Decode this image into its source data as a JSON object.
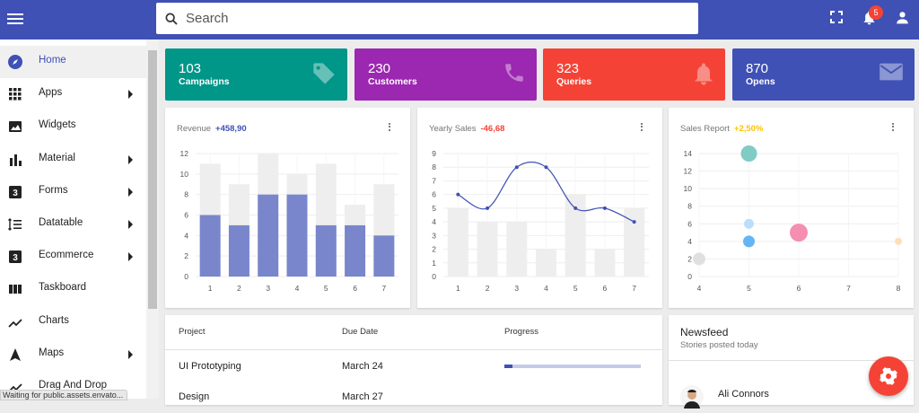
{
  "topbar": {
    "search_placeholder": "Search",
    "notification_count": "5"
  },
  "sidebar": {
    "items": [
      {
        "label": "Home",
        "icon": "compass-icon",
        "chevron": false,
        "active": true
      },
      {
        "label": "Apps",
        "icon": "apps-grid-icon",
        "chevron": true
      },
      {
        "label": "Widgets",
        "icon": "image-icon",
        "chevron": false
      },
      {
        "label": "Material",
        "icon": "bar-chart-icon",
        "chevron": true
      },
      {
        "label": "Forms",
        "icon": "box-3-icon",
        "chevron": true
      },
      {
        "label": "Datatable",
        "icon": "list-numbered-icon",
        "chevron": true
      },
      {
        "label": "Ecommerce",
        "icon": "box-3-icon",
        "chevron": true
      },
      {
        "label": "Taskboard",
        "icon": "columns-icon",
        "chevron": false
      },
      {
        "label": "Charts",
        "icon": "trending-icon",
        "chevron": false
      },
      {
        "label": "Maps",
        "icon": "navigation-icon",
        "chevron": true
      },
      {
        "label": "Drag And Drop",
        "icon": "trending-icon",
        "chevron": false
      }
    ]
  },
  "status_text": "Waiting for public.assets.envato...",
  "tiles": [
    {
      "value": "103",
      "label": "Campaigns",
      "color": "#009688",
      "icon": "tag-icon"
    },
    {
      "value": "230",
      "label": "Customers",
      "color": "#9c27b0",
      "icon": "phone-icon"
    },
    {
      "value": "323",
      "label": "Queries",
      "color": "#f44336",
      "icon": "bell-icon"
    },
    {
      "value": "870",
      "label": "Opens",
      "color": "#3f51b5",
      "icon": "mail-icon"
    }
  ],
  "revenue": {
    "title": "Revenue",
    "delta": "+458,90",
    "delta_color": "#3f51b5"
  },
  "yearly": {
    "title": "Yearly Sales",
    "delta": "-46,68",
    "delta_color": "#f44336"
  },
  "sales_report": {
    "title": "Sales Report",
    "delta": "+2,50%",
    "delta_color": "#ffc107"
  },
  "chart_data": [
    {
      "type": "bar",
      "title": "Revenue",
      "categories": [
        "1",
        "2",
        "3",
        "4",
        "5",
        "6",
        "7"
      ],
      "series": [
        {
          "values": [
            6,
            5,
            8,
            8,
            5,
            5,
            4
          ],
          "color": "#7986cb"
        },
        {
          "values": [
            11,
            9,
            12,
            10,
            11,
            7,
            9
          ],
          "color": "#eeeeee"
        }
      ],
      "stacking": "overlay",
      "ylim": [
        0,
        12
      ],
      "yticks": [
        0,
        2,
        4,
        6,
        8,
        10,
        12
      ],
      "grid": true
    },
    {
      "type": "bar+line",
      "title": "Yearly Sales",
      "categories": [
        "1",
        "2",
        "3",
        "4",
        "5",
        "6",
        "7"
      ],
      "bars": [
        5,
        4,
        4,
        2,
        6,
        2,
        5
      ],
      "line": [
        6,
        5,
        8,
        8,
        5,
        5,
        4
      ],
      "line_color": "#3f51b5",
      "ylim": [
        0,
        9
      ],
      "yticks": [
        0,
        1,
        2,
        3,
        4,
        5,
        6,
        7,
        8,
        9
      ],
      "grid": true
    },
    {
      "type": "scatter",
      "title": "Sales Report",
      "xlim": [
        4,
        8
      ],
      "ylim": [
        0,
        14
      ],
      "xticks": [
        4,
        5,
        6,
        7,
        8
      ],
      "yticks": [
        0,
        2,
        4,
        6,
        8,
        10,
        12,
        14
      ],
      "points": [
        {
          "x": 4,
          "y": 2,
          "r": 7,
          "color": "#e0e0e0"
        },
        {
          "x": 5,
          "y": 14,
          "r": 9,
          "color": "#80cbc4"
        },
        {
          "x": 5,
          "y": 6,
          "r": 5.5,
          "color": "#bbdefb"
        },
        {
          "x": 5,
          "y": 4,
          "r": 6.5,
          "color": "#64b5f6"
        },
        {
          "x": 6,
          "y": 5,
          "r": 10,
          "color": "#f48fb1"
        },
        {
          "x": 8,
          "y": 4,
          "r": 4,
          "color": "#ffe0b2"
        }
      ],
      "grid": true
    }
  ],
  "projects": {
    "headers": [
      "Project",
      "Due Date",
      "Progress"
    ],
    "rows": [
      {
        "project": "UI Prototyping",
        "due": "March 24",
        "progress": 0.06
      },
      {
        "project": "Design",
        "due": "March 27",
        "progress": 0
      }
    ]
  },
  "newsfeed": {
    "title": "Newsfeed",
    "subtitle": "Stories posted today",
    "items": [
      {
        "name": "Ali Connors"
      }
    ]
  }
}
